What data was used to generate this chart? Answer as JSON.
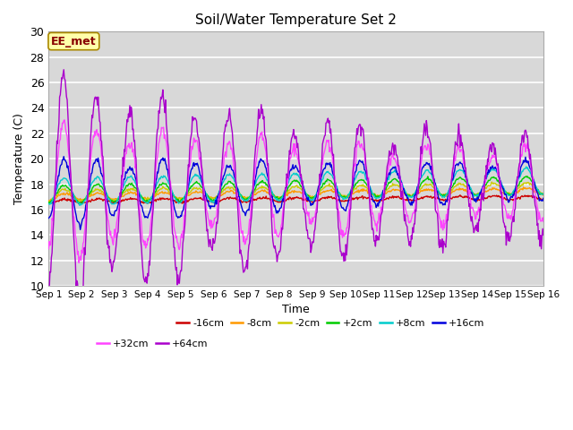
{
  "title": "Soil/Water Temperature Set 2",
  "xlabel": "Time",
  "ylabel": "Temperature (C)",
  "ylim": [
    10,
    30
  ],
  "yticks": [
    10,
    12,
    14,
    16,
    18,
    20,
    22,
    24,
    26,
    28,
    30
  ],
  "background_color": "#d8d8d8",
  "plot_bg_color": "#d8d8d8",
  "fig_bg_color": "#ffffff",
  "grid_color": "#ffffff",
  "annotation_text": "EE_met",
  "annotation_bg": "#ffffaa",
  "annotation_border": "#aa8800",
  "annotation_text_color": "#880000",
  "series": [
    {
      "label": "-16cm",
      "color": "#cc0000",
      "base": 16.65,
      "amp": 0.12,
      "phase": 0.0,
      "trend": 0.02,
      "decay": 0.0
    },
    {
      "label": "-8cm",
      "color": "#ff9900",
      "base": 17.0,
      "amp": 0.2,
      "phase": 0.05,
      "trend": 0.03,
      "decay": 0.0
    },
    {
      "label": "-2cm",
      "color": "#cccc00",
      "base": 17.1,
      "amp": 0.35,
      "phase": 0.1,
      "trend": 0.04,
      "decay": 0.0
    },
    {
      "label": "+2cm",
      "color": "#00cc00",
      "base": 17.2,
      "amp": 0.55,
      "phase": 0.15,
      "trend": 0.048,
      "decay": 0.0
    },
    {
      "label": "+8cm",
      "color": "#00cccc",
      "base": 17.4,
      "amp": 0.85,
      "phase": 0.2,
      "trend": 0.055,
      "decay": 0.0
    },
    {
      "label": "+16cm",
      "color": "#0000dd",
      "base": 17.4,
      "amp": 2.2,
      "phase": 0.25,
      "trend": 0.058,
      "decay": 0.05
    },
    {
      "label": "+32cm",
      "color": "#ff44ff",
      "base": 17.5,
      "amp": 4.5,
      "phase": 0.3,
      "trend": 0.035,
      "decay": 0.06
    },
    {
      "label": "+64cm",
      "color": "#aa00cc",
      "base": 17.5,
      "amp": 7.5,
      "phase": 0.35,
      "trend": 0.015,
      "decay": 0.08
    }
  ],
  "xtick_labels": [
    "Sep 1",
    "Sep 2",
    "Sep 3",
    "Sep 4",
    "Sep 5",
    "Sep 6",
    "Sep 7",
    "Sep 8",
    "Sep 9",
    "Sep 10",
    "Sep 11",
    "Sep 12",
    "Sep 13",
    "Sep 14",
    "Sep 15",
    "Sep 16"
  ],
  "n_points": 720,
  "days": 15
}
